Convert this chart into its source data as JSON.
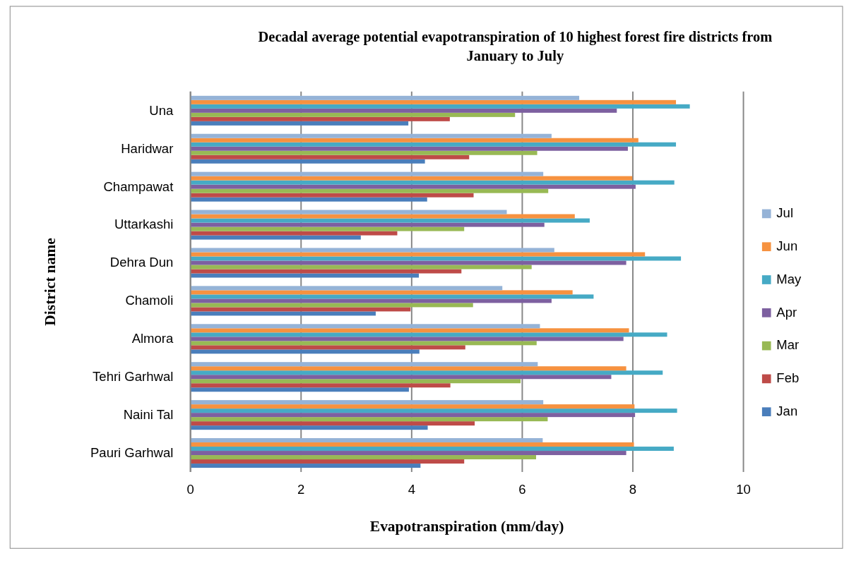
{
  "chart_data": {
    "type": "bar",
    "orientation": "horizontal",
    "title": "Decadal average potential evapotranspiration of 10 highest forest fire districts from January to July",
    "xlabel": "Evapotranspiration (mm/day)",
    "ylabel": "District name",
    "categories": [
      "Una",
      "Haridwar",
      "Champawat",
      "Uttarkashi",
      "Dehra Dun",
      "Chamoli",
      "Almora",
      "Tehri Garhwal",
      "Naini Tal",
      "Pauri Garhwal"
    ],
    "series": [
      {
        "name": "Jan",
        "color": "#4a7ebb",
        "values": [
          3.94,
          4.24,
          4.28,
          3.08,
          4.13,
          3.35,
          4.14,
          3.95,
          4.29,
          4.16
        ]
      },
      {
        "name": "Feb",
        "color": "#be4b48",
        "values": [
          4.69,
          5.04,
          5.12,
          3.74,
          4.9,
          3.98,
          4.97,
          4.7,
          5.14,
          4.95
        ]
      },
      {
        "name": "Mar",
        "color": "#98b954",
        "values": [
          5.87,
          6.27,
          6.47,
          4.95,
          6.17,
          5.11,
          6.26,
          5.97,
          6.46,
          6.25
        ]
      },
      {
        "name": "Apr",
        "color": "#7d60a0",
        "values": [
          7.71,
          7.91,
          8.05,
          6.4,
          7.88,
          6.53,
          7.83,
          7.61,
          8.04,
          7.88
        ]
      },
      {
        "name": "May",
        "color": "#46aac5",
        "values": [
          9.03,
          8.78,
          8.75,
          7.22,
          8.87,
          7.29,
          8.62,
          8.54,
          8.8,
          8.74
        ]
      },
      {
        "name": "Jun",
        "color": "#f69240",
        "values": [
          8.78,
          8.1,
          7.99,
          6.95,
          8.22,
          6.91,
          7.93,
          7.88,
          8.03,
          8.02
        ]
      },
      {
        "name": "Jul",
        "color": "#95b3d7",
        "values": [
          7.03,
          6.53,
          6.38,
          5.72,
          6.58,
          5.64,
          6.32,
          6.28,
          6.38,
          6.37
        ]
      }
    ],
    "xlim": [
      0,
      10
    ],
    "xticks": [
      0,
      2,
      4,
      6,
      8,
      10
    ],
    "grid": "x",
    "legend": "right"
  }
}
